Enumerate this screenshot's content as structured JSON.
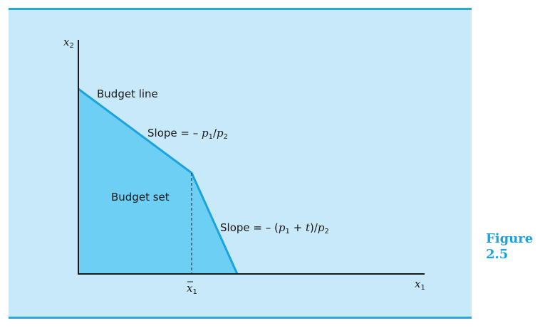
{
  "labels": {
    "y_axis_var": "x",
    "y_axis_sub": "2",
    "x_axis_var": "x",
    "x_axis_sub": "1",
    "kink_var": "x",
    "kink_sub": "1",
    "budget_line": "Budget line",
    "budget_set": "Budget set",
    "slope1_prefix": "Slope = – ",
    "slope1_p1": "p",
    "slope1_p1_sub": "1",
    "slope1_sep": "/",
    "slope1_p2": "p",
    "slope1_p2_sub": "2",
    "slope2_prefix": "Slope = – (",
    "slope2_p1": "p",
    "slope2_p1_sub": "1",
    "slope2_plus": " + ",
    "slope2_t": "t",
    "slope2_close": ")/",
    "slope2_p2": "p",
    "slope2_p2_sub": "2"
  },
  "figure": {
    "word": "Figure",
    "number": "2.5"
  },
  "colors": {
    "panel": "#c7e9f9",
    "rule": "#2aa8dd",
    "budget_set_fill": "#6dcff3",
    "budget_line": "#1aa3e0",
    "axis": "#1a1a1a",
    "caption": "#1aa3e0"
  }
}
